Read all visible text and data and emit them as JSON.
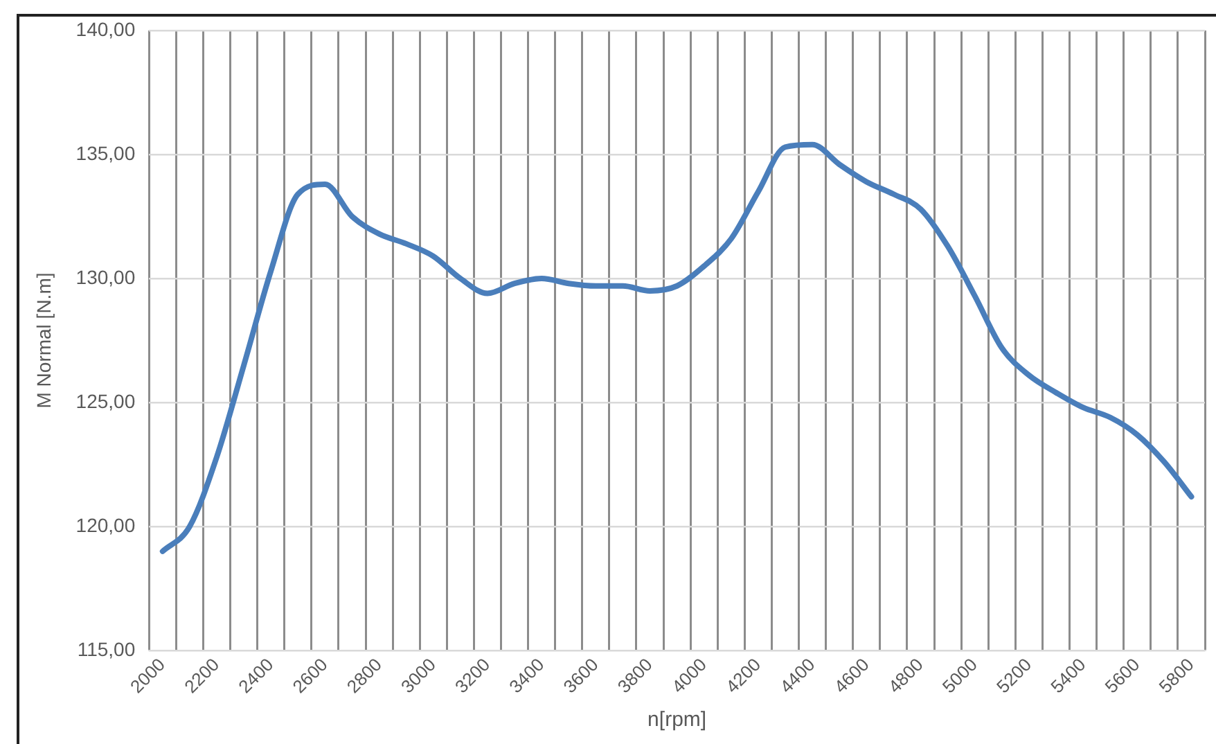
{
  "chart_data": {
    "type": "line",
    "xlabel": "n[rpm]",
    "ylabel": "M Normal [N.m]",
    "categories": [
      "2000",
      null,
      "2200",
      null,
      "2400",
      null,
      "2600",
      null,
      "2800",
      null,
      "3000",
      null,
      "3200",
      null,
      "3400",
      null,
      "3600",
      null,
      "3800",
      null,
      "4000",
      null,
      "4200",
      null,
      "4400",
      null,
      "4600",
      null,
      "4800",
      null,
      "5000",
      null,
      "5200",
      null,
      "5400",
      null,
      "5600",
      null,
      "5800"
    ],
    "series": [
      {
        "color": "#4a7ebb",
        "values": [
          119.0,
          120.0,
          122.8,
          126.5,
          130.3,
          133.4,
          133.8,
          132.5,
          131.8,
          131.4,
          130.9,
          130.0,
          129.4,
          129.8,
          130.0,
          129.8,
          129.7,
          129.7,
          129.5,
          129.7,
          130.5,
          131.6,
          133.5,
          135.3,
          135.4,
          134.6,
          133.9,
          133.4,
          132.8,
          131.3,
          129.3,
          127.2,
          126.1,
          125.4,
          124.8,
          124.4,
          123.7,
          122.6,
          121.2
        ]
      }
    ],
    "ylim": [
      115,
      140
    ],
    "yticks": [
      {
        "value": 115,
        "label": "115,00"
      },
      {
        "value": 120,
        "label": "120,00"
      },
      {
        "value": 125,
        "label": "125,00"
      },
      {
        "value": 130,
        "label": "130,00"
      },
      {
        "value": 135,
        "label": "135,00"
      },
      {
        "value": 140,
        "label": "140,00"
      }
    ],
    "grid": true,
    "legend": false,
    "marker": "none",
    "line_style": "solid"
  }
}
